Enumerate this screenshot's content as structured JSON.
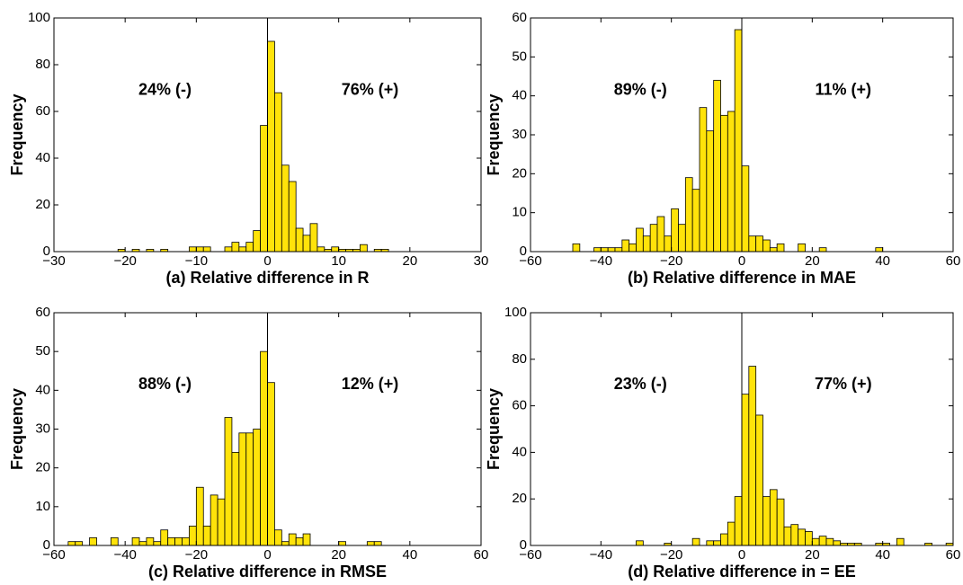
{
  "chart_data": [
    {
      "type": "histogram",
      "xlabel": "(a) Relative difference in R",
      "ylabel": "Frequency",
      "color": "#ffe30a",
      "annotations": [
        "24% (-)",
        "76% (+)"
      ],
      "vline": 0,
      "bins": [
        -22,
        -21,
        -20,
        -19,
        -18,
        -17,
        -16,
        -15,
        -14,
        -13,
        -12,
        -11,
        -10,
        -9,
        -8,
        -7,
        -6,
        -5,
        -4,
        -3,
        -2,
        -1,
        0,
        1,
        2,
        3,
        4,
        5,
        6,
        7,
        8,
        9,
        10,
        11,
        12,
        13,
        14,
        15,
        16,
        17
      ],
      "counts": [
        0,
        1,
        0,
        1,
        0,
        1,
        0,
        1,
        0,
        0,
        0,
        2,
        2,
        2,
        0,
        0,
        2,
        4,
        2,
        4,
        9,
        54,
        90,
        68,
        37,
        30,
        10,
        7,
        12,
        2,
        1,
        2,
        1,
        1,
        1,
        3,
        0,
        1,
        1
      ],
      "xlim": [
        -30,
        30
      ],
      "xticks": [
        {
          "value": -30,
          "label": "−30"
        },
        {
          "value": -20,
          "label": "−20"
        },
        {
          "value": -10,
          "label": "−10"
        },
        0,
        10,
        20,
        30
      ],
      "ylim": [
        0,
        100
      ],
      "yticks": [
        0,
        20,
        40,
        60,
        80,
        100
      ]
    },
    {
      "type": "histogram",
      "xlabel": "(b) Relative difference in MAE",
      "ylabel": "Frequency",
      "color": "#ffe30a",
      "annotations": [
        "89% (-)",
        "11% (+)"
      ],
      "vline": 0,
      "bins": [
        -48,
        -46,
        -44,
        -42,
        -40,
        -38,
        -36,
        -34,
        -32,
        -30,
        -28,
        -26,
        -24,
        -22,
        -20,
        -18,
        -16,
        -14,
        -12,
        -10,
        -8,
        -6,
        -4,
        -2,
        0,
        2,
        4,
        6,
        8,
        10,
        12,
        14,
        16,
        18,
        20,
        22,
        24,
        26,
        28,
        30,
        32,
        34,
        36,
        38,
        40
      ],
      "counts": [
        2,
        0,
        0,
        1,
        1,
        1,
        1,
        3,
        2,
        6,
        4,
        7,
        9,
        4,
        11,
        7,
        19,
        16,
        37,
        31,
        44,
        35,
        36,
        57,
        22,
        4,
        4,
        3,
        1,
        2,
        0,
        0,
        2,
        0,
        0,
        1,
        0,
        0,
        0,
        0,
        0,
        0,
        0,
        1
      ],
      "xlim": [
        -60,
        60
      ],
      "xticks": [
        {
          "value": -60,
          "label": "−60"
        },
        {
          "value": -40,
          "label": "−40"
        },
        {
          "value": -20,
          "label": "−20"
        },
        0,
        20,
        40,
        60
      ],
      "ylim": [
        0,
        60
      ],
      "yticks": [
        0,
        10,
        20,
        30,
        40,
        50,
        60
      ]
    },
    {
      "type": "histogram",
      "xlabel": "(c) Relative difference in RMSE",
      "ylabel": "Frequency",
      "color": "#ffe30a",
      "annotations": [
        "88% (-)",
        "12% (+)"
      ],
      "vline": 0,
      "bins": [
        -56,
        -54,
        -52,
        -50,
        -48,
        -46,
        -44,
        -42,
        -40,
        -38,
        -36,
        -34,
        -32,
        -30,
        -28,
        -26,
        -24,
        -22,
        -20,
        -18,
        -16,
        -14,
        -12,
        -10,
        -8,
        -6,
        -4,
        -2,
        0,
        2,
        4,
        6,
        8,
        10,
        12,
        14,
        16,
        18,
        20,
        22,
        24,
        26,
        28,
        30,
        32
      ],
      "counts": [
        1,
        1,
        0,
        2,
        0,
        0,
        2,
        0,
        0,
        2,
        1,
        2,
        1,
        4,
        2,
        2,
        2,
        5,
        15,
        5,
        13,
        12,
        33,
        24,
        29,
        29,
        30,
        50,
        42,
        4,
        1,
        3,
        2,
        3,
        0,
        0,
        0,
        0,
        1,
        0,
        0,
        0,
        1,
        1
      ],
      "xlim": [
        -60,
        60
      ],
      "xticks": [
        {
          "value": -60,
          "label": "−60"
        },
        {
          "value": -40,
          "label": "−40"
        },
        {
          "value": -20,
          "label": "−20"
        },
        0,
        20,
        40,
        60
      ],
      "ylim": [
        0,
        60
      ],
      "yticks": [
        0,
        10,
        20,
        30,
        40,
        50,
        60
      ]
    },
    {
      "type": "histogram",
      "xlabel": "(d) Relative difference in = EE",
      "ylabel": "Frequency",
      "color": "#ffe30a",
      "annotations": [
        "23% (-)",
        "77% (+)"
      ],
      "vline": 0,
      "bins": [
        -30,
        -28,
        -26,
        -24,
        -22,
        -20,
        -18,
        -16,
        -14,
        -12,
        -10,
        -8,
        -6,
        -4,
        -2,
        0,
        2,
        4,
        6,
        8,
        10,
        12,
        14,
        16,
        18,
        20,
        22,
        24,
        26,
        28,
        30,
        32,
        34,
        36,
        38,
        40,
        42,
        44,
        46,
        48,
        50,
        52,
        54,
        56,
        58,
        60
      ],
      "counts": [
        2,
        0,
        0,
        0,
        1,
        0,
        0,
        0,
        3,
        0,
        2,
        2,
        5,
        10,
        21,
        65,
        77,
        56,
        21,
        24,
        20,
        8,
        9,
        7,
        6,
        3,
        4,
        3,
        2,
        1,
        1,
        1,
        0,
        0,
        1,
        1,
        0,
        3,
        0,
        0,
        0,
        1,
        0,
        0,
        1
      ],
      "xlim": [
        -60,
        60
      ],
      "xticks": [
        {
          "value": -60,
          "label": "−60"
        },
        {
          "value": -40,
          "label": "−40"
        },
        {
          "value": -20,
          "label": "−20"
        },
        0,
        20,
        40,
        60
      ],
      "ylim": [
        0,
        100
      ],
      "yticks": [
        0,
        20,
        40,
        60,
        80,
        100
      ]
    }
  ]
}
